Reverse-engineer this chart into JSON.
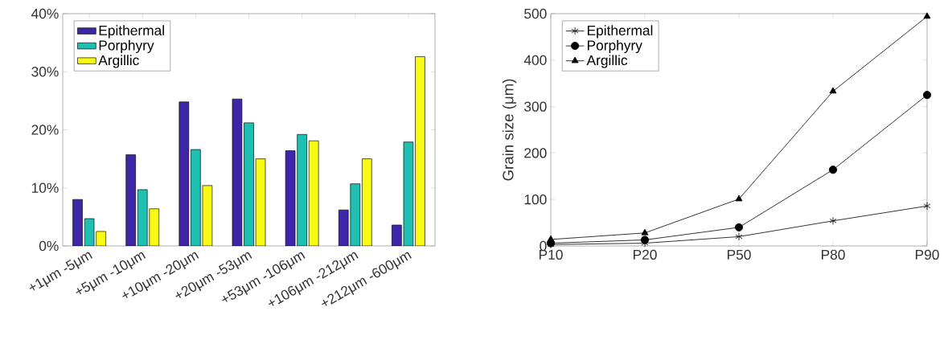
{
  "chart_data": [
    {
      "type": "bar",
      "categories": [
        "+1μm -5μm",
        "+5μm -10μm",
        "+10μm -20μm",
        "+20μm -53μm",
        "+53μm -106μm",
        "+106μm -212μm",
        "+212μm -600μm"
      ],
      "series": [
        {
          "name": "Epithermal",
          "color": "#3e26a8",
          "values": [
            8.0,
            15.7,
            24.8,
            25.3,
            16.4,
            6.2,
            3.6
          ]
        },
        {
          "name": "Porphyry",
          "color": "#1fbfb2",
          "values": [
            4.7,
            9.7,
            16.6,
            21.2,
            19.2,
            10.7,
            17.9
          ]
        },
        {
          "name": "Argillic",
          "color": "#f8fa14",
          "values": [
            2.5,
            6.4,
            10.4,
            15.0,
            18.1,
            15.0,
            32.6
          ]
        }
      ],
      "ylim": [
        0,
        40
      ],
      "yticks": [
        {
          "value": 0,
          "label": "0%"
        },
        {
          "value": 10,
          "label": "10%"
        },
        {
          "value": 20,
          "label": "20%"
        },
        {
          "value": 30,
          "label": "30%"
        },
        {
          "value": 40,
          "label": "40%"
        }
      ],
      "legend": "top left"
    },
    {
      "type": "line",
      "categories": [
        "P10",
        "P20",
        "P50",
        "P80",
        "P90"
      ],
      "ylabel": "Grain size (μm)",
      "series": [
        {
          "name": "Epithermal",
          "color": "#000000",
          "marker": "cross",
          "values": [
            3,
            6,
            20,
            54,
            86
          ]
        },
        {
          "name": "Porphyry",
          "color": "#000000",
          "marker": "circle",
          "values": [
            6,
            13,
            40,
            164,
            325
          ]
        },
        {
          "name": "Argillic",
          "color": "#000000",
          "marker": "triangle",
          "values": [
            14,
            28,
            101,
            333,
            494
          ]
        }
      ],
      "ylim": [
        0,
        500
      ],
      "yticks": [
        0,
        100,
        200,
        300,
        400,
        500
      ],
      "legend": "top left"
    }
  ]
}
